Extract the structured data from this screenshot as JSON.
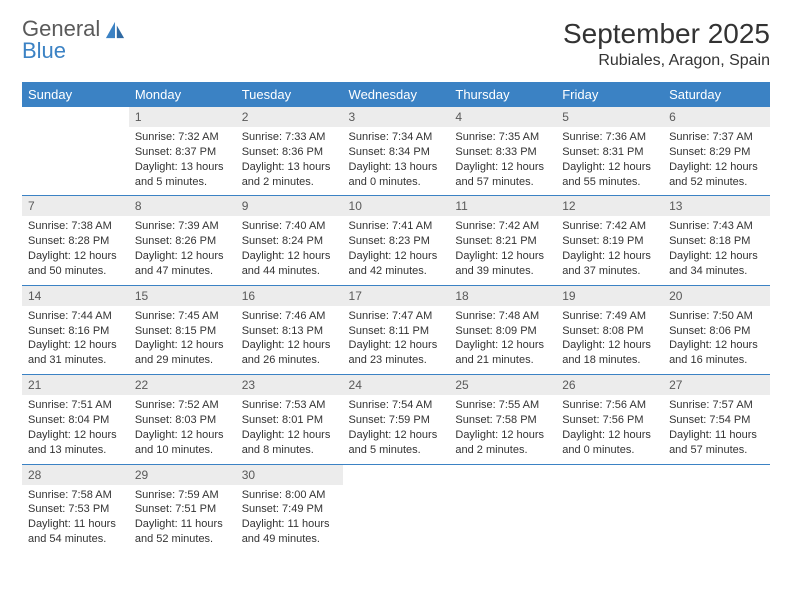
{
  "logo": {
    "word1": "General",
    "word2": "Blue"
  },
  "title": "September 2025",
  "location": "Rubiales, Aragon, Spain",
  "colors": {
    "header_bg": "#3b82c4",
    "header_text": "#ffffff",
    "daynum_bg": "#ececec",
    "daynum_text": "#595959",
    "body_text": "#333333",
    "rule": "#3b82c4",
    "logo_gray": "#5a5a5a",
    "logo_blue": "#3b82c4"
  },
  "day_names": [
    "Sunday",
    "Monday",
    "Tuesday",
    "Wednesday",
    "Thursday",
    "Friday",
    "Saturday"
  ],
  "weeks": [
    [
      null,
      {
        "n": "1",
        "sr": "7:32 AM",
        "ss": "8:37 PM",
        "dl": "13 hours and 5 minutes."
      },
      {
        "n": "2",
        "sr": "7:33 AM",
        "ss": "8:36 PM",
        "dl": "13 hours and 2 minutes."
      },
      {
        "n": "3",
        "sr": "7:34 AM",
        "ss": "8:34 PM",
        "dl": "13 hours and 0 minutes."
      },
      {
        "n": "4",
        "sr": "7:35 AM",
        "ss": "8:33 PM",
        "dl": "12 hours and 57 minutes."
      },
      {
        "n": "5",
        "sr": "7:36 AM",
        "ss": "8:31 PM",
        "dl": "12 hours and 55 minutes."
      },
      {
        "n": "6",
        "sr": "7:37 AM",
        "ss": "8:29 PM",
        "dl": "12 hours and 52 minutes."
      }
    ],
    [
      {
        "n": "7",
        "sr": "7:38 AM",
        "ss": "8:28 PM",
        "dl": "12 hours and 50 minutes."
      },
      {
        "n": "8",
        "sr": "7:39 AM",
        "ss": "8:26 PM",
        "dl": "12 hours and 47 minutes."
      },
      {
        "n": "9",
        "sr": "7:40 AM",
        "ss": "8:24 PM",
        "dl": "12 hours and 44 minutes."
      },
      {
        "n": "10",
        "sr": "7:41 AM",
        "ss": "8:23 PM",
        "dl": "12 hours and 42 minutes."
      },
      {
        "n": "11",
        "sr": "7:42 AM",
        "ss": "8:21 PM",
        "dl": "12 hours and 39 minutes."
      },
      {
        "n": "12",
        "sr": "7:42 AM",
        "ss": "8:19 PM",
        "dl": "12 hours and 37 minutes."
      },
      {
        "n": "13",
        "sr": "7:43 AM",
        "ss": "8:18 PM",
        "dl": "12 hours and 34 minutes."
      }
    ],
    [
      {
        "n": "14",
        "sr": "7:44 AM",
        "ss": "8:16 PM",
        "dl": "12 hours and 31 minutes."
      },
      {
        "n": "15",
        "sr": "7:45 AM",
        "ss": "8:15 PM",
        "dl": "12 hours and 29 minutes."
      },
      {
        "n": "16",
        "sr": "7:46 AM",
        "ss": "8:13 PM",
        "dl": "12 hours and 26 minutes."
      },
      {
        "n": "17",
        "sr": "7:47 AM",
        "ss": "8:11 PM",
        "dl": "12 hours and 23 minutes."
      },
      {
        "n": "18",
        "sr": "7:48 AM",
        "ss": "8:09 PM",
        "dl": "12 hours and 21 minutes."
      },
      {
        "n": "19",
        "sr": "7:49 AM",
        "ss": "8:08 PM",
        "dl": "12 hours and 18 minutes."
      },
      {
        "n": "20",
        "sr": "7:50 AM",
        "ss": "8:06 PM",
        "dl": "12 hours and 16 minutes."
      }
    ],
    [
      {
        "n": "21",
        "sr": "7:51 AM",
        "ss": "8:04 PM",
        "dl": "12 hours and 13 minutes."
      },
      {
        "n": "22",
        "sr": "7:52 AM",
        "ss": "8:03 PM",
        "dl": "12 hours and 10 minutes."
      },
      {
        "n": "23",
        "sr": "7:53 AM",
        "ss": "8:01 PM",
        "dl": "12 hours and 8 minutes."
      },
      {
        "n": "24",
        "sr": "7:54 AM",
        "ss": "7:59 PM",
        "dl": "12 hours and 5 minutes."
      },
      {
        "n": "25",
        "sr": "7:55 AM",
        "ss": "7:58 PM",
        "dl": "12 hours and 2 minutes."
      },
      {
        "n": "26",
        "sr": "7:56 AM",
        "ss": "7:56 PM",
        "dl": "12 hours and 0 minutes."
      },
      {
        "n": "27",
        "sr": "7:57 AM",
        "ss": "7:54 PM",
        "dl": "11 hours and 57 minutes."
      }
    ],
    [
      {
        "n": "28",
        "sr": "7:58 AM",
        "ss": "7:53 PM",
        "dl": "11 hours and 54 minutes."
      },
      {
        "n": "29",
        "sr": "7:59 AM",
        "ss": "7:51 PM",
        "dl": "11 hours and 52 minutes."
      },
      {
        "n": "30",
        "sr": "8:00 AM",
        "ss": "7:49 PM",
        "dl": "11 hours and 49 minutes."
      },
      null,
      null,
      null,
      null
    ]
  ],
  "labels": {
    "sunrise": "Sunrise:",
    "sunset": "Sunset:",
    "daylight": "Daylight:"
  }
}
